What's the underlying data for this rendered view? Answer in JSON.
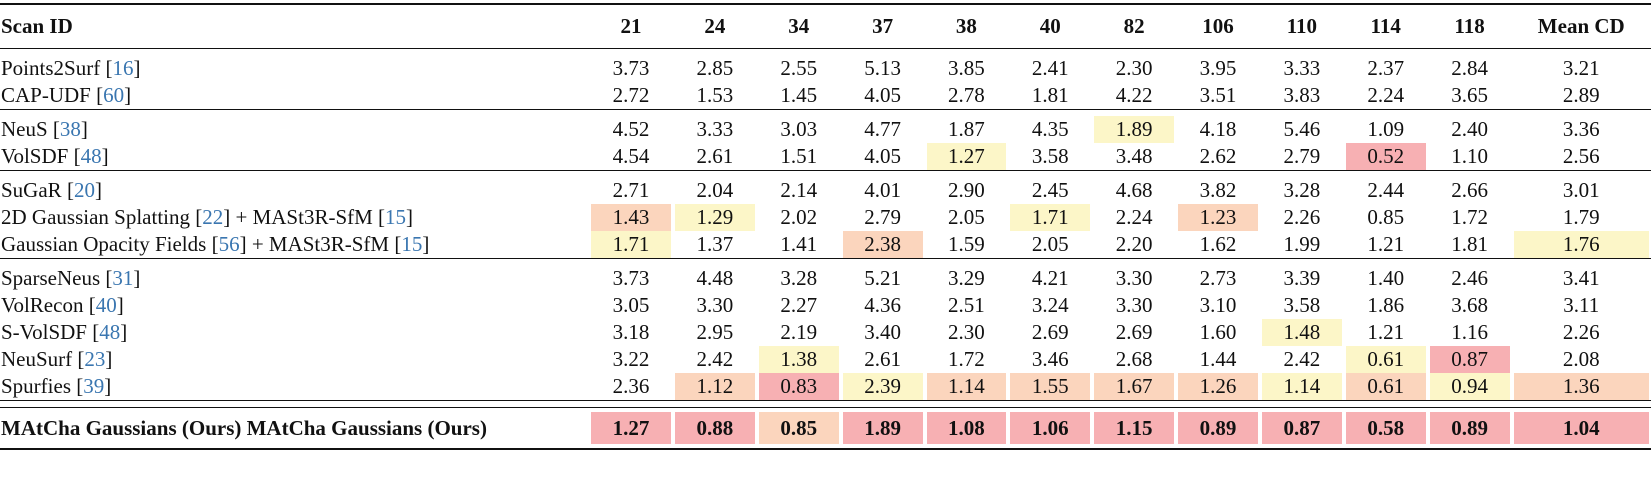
{
  "header": {
    "label": "Scan ID",
    "columns": [
      "21",
      "24",
      "34",
      "37",
      "38",
      "40",
      "82",
      "106",
      "110",
      "114",
      "118",
      "Mean CD"
    ]
  },
  "groups": [
    {
      "rows": [
        {
          "name": "Points2Surf ",
          "ref": "16",
          "suffix": "",
          "values": [
            "3.73",
            "2.85",
            "2.55",
            "5.13",
            "3.85",
            "2.41",
            "2.30",
            "3.95",
            "3.33",
            "2.37",
            "2.84",
            "3.21"
          ],
          "hl": [
            "",
            "",
            "",
            "",
            "",
            "",
            "",
            "",
            "",
            "",
            "",
            ""
          ]
        },
        {
          "name": "CAP-UDF ",
          "ref": "60",
          "suffix": "",
          "values": [
            "2.72",
            "1.53",
            "1.45",
            "4.05",
            "2.78",
            "1.81",
            "4.22",
            "3.51",
            "3.83",
            "2.24",
            "3.65",
            "2.89"
          ],
          "hl": [
            "",
            "",
            "",
            "",
            "",
            "",
            "",
            "",
            "",
            "",
            "",
            ""
          ]
        }
      ]
    },
    {
      "rows": [
        {
          "name": "NeuS ",
          "ref": "38",
          "suffix": "",
          "values": [
            "4.52",
            "3.33",
            "3.03",
            "4.77",
            "1.87",
            "4.35",
            "1.89",
            "4.18",
            "5.46",
            "1.09",
            "2.40",
            "3.36"
          ],
          "hl": [
            "",
            "",
            "",
            "",
            "",
            "",
            "yellow",
            "",
            "",
            "",
            "",
            ""
          ]
        },
        {
          "name": "VolSDF ",
          "ref": "48",
          "suffix": "",
          "values": [
            "4.54",
            "2.61",
            "1.51",
            "4.05",
            "1.27",
            "3.58",
            "3.48",
            "2.62",
            "2.79",
            "0.52",
            "1.10",
            "2.56"
          ],
          "hl": [
            "",
            "",
            "",
            "",
            "yellow",
            "",
            "",
            "",
            "",
            "red",
            "",
            ""
          ]
        }
      ]
    },
    {
      "rows": [
        {
          "name": "SuGaR ",
          "ref": "20",
          "suffix": "",
          "values": [
            "2.71",
            "2.04",
            "2.14",
            "4.01",
            "2.90",
            "2.45",
            "4.68",
            "3.82",
            "3.28",
            "2.44",
            "2.66",
            "3.01"
          ],
          "hl": [
            "",
            "",
            "",
            "",
            "",
            "",
            "",
            "",
            "",
            "",
            "",
            ""
          ]
        },
        {
          "name": "2D Gaussian Splatting ",
          "ref": "22",
          "suffix": " + MASt3R-SfM ",
          "ref2": "15",
          "values": [
            "1.43",
            "1.29",
            "2.02",
            "2.79",
            "2.05",
            "1.71",
            "2.24",
            "1.23",
            "2.26",
            "0.85",
            "1.72",
            "1.79"
          ],
          "hl": [
            "orange",
            "yellow",
            "",
            "",
            "",
            "yellow",
            "",
            "orange",
            "",
            "",
            "",
            ""
          ]
        },
        {
          "name": "Gaussian Opacity Fields ",
          "ref": "56",
          "suffix": " + MASt3R-SfM ",
          "ref2": "15",
          "values": [
            "1.71",
            "1.37",
            "1.41",
            "2.38",
            "1.59",
            "2.05",
            "2.20",
            "1.62",
            "1.99",
            "1.21",
            "1.81",
            "1.76"
          ],
          "hl": [
            "yellow",
            "",
            "",
            "orange",
            "",
            "",
            "",
            "",
            "",
            "",
            "",
            "yellow"
          ]
        }
      ]
    },
    {
      "rows": [
        {
          "name": "SparseNeus ",
          "ref": "31",
          "suffix": "",
          "values": [
            "3.73",
            "4.48",
            "3.28",
            "5.21",
            "3.29",
            "4.21",
            "3.30",
            "2.73",
            "3.39",
            "1.40",
            "2.46",
            "3.41"
          ],
          "hl": [
            "",
            "",
            "",
            "",
            "",
            "",
            "",
            "",
            "",
            "",
            "",
            ""
          ]
        },
        {
          "name": "VolRecon ",
          "ref": "40",
          "suffix": "",
          "values": [
            "3.05",
            "3.30",
            "2.27",
            "4.36",
            "2.51",
            "3.24",
            "3.30",
            "3.10",
            "3.58",
            "1.86",
            "3.68",
            "3.11"
          ],
          "hl": [
            "",
            "",
            "",
            "",
            "",
            "",
            "",
            "",
            "",
            "",
            "",
            ""
          ]
        },
        {
          "name": "S-VolSDF ",
          "ref": "48",
          "suffix": "",
          "values": [
            "3.18",
            "2.95",
            "2.19",
            "3.40",
            "2.30",
            "2.69",
            "2.69",
            "1.60",
            "1.48",
            "1.21",
            "1.16",
            "2.26"
          ],
          "hl": [
            "",
            "",
            "",
            "",
            "",
            "",
            "",
            "",
            "yellow",
            "",
            "",
            ""
          ]
        },
        {
          "name": "NeuSurf ",
          "ref": "23",
          "suffix": "",
          "values": [
            "3.22",
            "2.42",
            "1.38",
            "2.61",
            "1.72",
            "3.46",
            "2.68",
            "1.44",
            "2.42",
            "0.61",
            "0.87",
            "2.08"
          ],
          "hl": [
            "",
            "",
            "yellow",
            "",
            "",
            "",
            "",
            "",
            "",
            "yellow",
            "red",
            ""
          ]
        },
        {
          "name": "Spurfies ",
          "ref": "39",
          "suffix": "",
          "values": [
            "2.36",
            "1.12",
            "0.83",
            "2.39",
            "1.14",
            "1.55",
            "1.67",
            "1.26",
            "1.14",
            "0.61",
            "0.94",
            "1.36"
          ],
          "hl": [
            "",
            "orange",
            "red",
            "yellow",
            "orange",
            "orange",
            "orange",
            "orange",
            "yellow",
            "orange",
            "yellow",
            "orange"
          ]
        }
      ]
    }
  ],
  "final": {
    "name": "MAtCha Gaussians (Ours) MAtCha Gaussians (Ours)",
    "values": [
      "1.27",
      "0.88",
      "0.85",
      "1.89",
      "1.08",
      "1.06",
      "1.15",
      "0.89",
      "0.87",
      "0.58",
      "0.89",
      "1.04"
    ],
    "hl": [
      "red",
      "red",
      "orange",
      "red",
      "red",
      "red",
      "red",
      "red",
      "red",
      "red",
      "red",
      "red"
    ]
  },
  "colors": {
    "red": "#f7b0b3",
    "orange": "#fbd5bd",
    "yellow": "#fcf6c8",
    "ref": "#3a76b0"
  }
}
